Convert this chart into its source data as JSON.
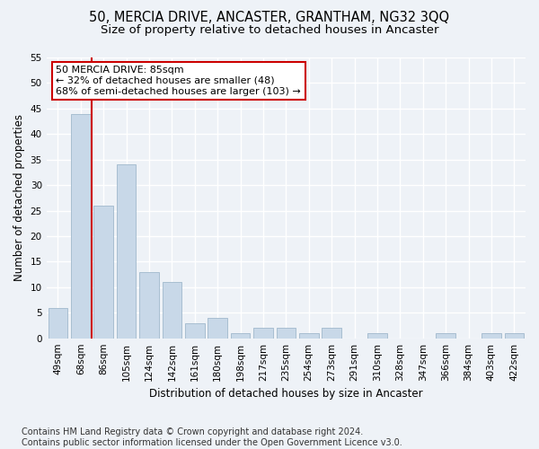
{
  "title1": "50, MERCIA DRIVE, ANCASTER, GRANTHAM, NG32 3QQ",
  "title2": "Size of property relative to detached houses in Ancaster",
  "xlabel": "Distribution of detached houses by size in Ancaster",
  "ylabel": "Number of detached properties",
  "categories": [
    "49sqm",
    "68sqm",
    "86sqm",
    "105sqm",
    "124sqm",
    "142sqm",
    "161sqm",
    "180sqm",
    "198sqm",
    "217sqm",
    "235sqm",
    "254sqm",
    "273sqm",
    "291sqm",
    "310sqm",
    "328sqm",
    "347sqm",
    "366sqm",
    "384sqm",
    "403sqm",
    "422sqm"
  ],
  "values": [
    6,
    44,
    26,
    34,
    13,
    11,
    3,
    4,
    1,
    2,
    2,
    1,
    2,
    0,
    1,
    0,
    0,
    1,
    0,
    1,
    1
  ],
  "bar_color": "#c8d8e8",
  "bar_edge_color": "#a0b8cc",
  "vline_x": 1.5,
  "vline_color": "#cc0000",
  "annotation_text": "50 MERCIA DRIVE: 85sqm\n← 32% of detached houses are smaller (48)\n68% of semi-detached houses are larger (103) →",
  "annotation_box_color": "#ffffff",
  "annotation_box_edge": "#cc0000",
  "ylim": [
    0,
    55
  ],
  "yticks": [
    0,
    5,
    10,
    15,
    20,
    25,
    30,
    35,
    40,
    45,
    50,
    55
  ],
  "footer": "Contains HM Land Registry data © Crown copyright and database right 2024.\nContains public sector information licensed under the Open Government Licence v3.0.",
  "bg_color": "#eef2f7",
  "grid_color": "#ffffff",
  "title1_fontsize": 10.5,
  "title2_fontsize": 9.5,
  "annot_fontsize": 8,
  "footer_fontsize": 7,
  "axis_label_fontsize": 8.5,
  "tick_fontsize": 7.5
}
